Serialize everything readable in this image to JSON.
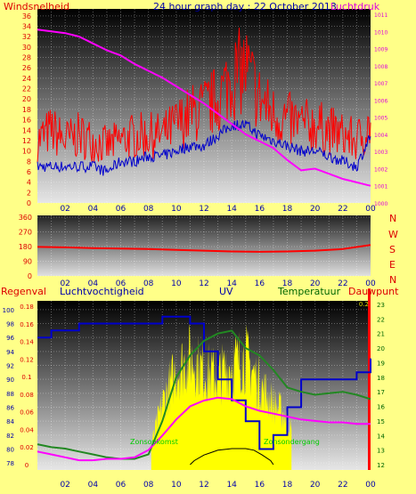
{
  "title": "24 hour graph day : 22 October 2013",
  "colors": {
    "background": "#ffff88",
    "wind": "#ff0000",
    "gust": "#0000cc",
    "pressure": "#ff00ff",
    "rain": "#ff0000",
    "humidity": "#0000cc",
    "uv": "#ffff00",
    "temperature": "#228822",
    "dewpoint": "#ff00ff",
    "solar": "#000000"
  },
  "x_ticks": [
    "02",
    "04",
    "06",
    "08",
    "10",
    "12",
    "14",
    "16",
    "18",
    "20",
    "22",
    "00"
  ],
  "top": {
    "left_label": "Windsnelheid",
    "right_label": "Luchtdruk",
    "left_ticks": [
      "36",
      "34",
      "32",
      "30",
      "28",
      "26",
      "24",
      "22",
      "20",
      "18",
      "16",
      "14",
      "12",
      "10",
      "8",
      "6",
      "4",
      "2",
      "0"
    ],
    "right_ticks": [
      "1011",
      "1010",
      "1009",
      "1008",
      "1007",
      "1006",
      "1005",
      "1004",
      "1003",
      "1002",
      "1001",
      "1000"
    ]
  },
  "middle": {
    "left_ticks": [
      "360",
      "270",
      "180",
      "90",
      "0"
    ],
    "directions": [
      "N",
      "W",
      "S",
      "E",
      "N"
    ]
  },
  "bottom": {
    "labels": [
      "Regenval",
      "Luchtvochtigheid",
      "UV",
      "Temperatuur",
      "Dauwpunt"
    ],
    "humidity_ticks": [
      "100",
      "98",
      "96",
      "94",
      "92",
      "90",
      "88",
      "86",
      "84",
      "82",
      "80",
      "78"
    ],
    "rain_ticks": [
      "0.18",
      "0.16",
      "0.14",
      "0.12",
      "0.1",
      "0.08",
      "0.06",
      "0.04",
      "0.02",
      "0"
    ],
    "temp_ticks": [
      "23",
      "22",
      "21",
      "20",
      "19",
      "18",
      "17",
      "16",
      "15",
      "14",
      "13",
      "12"
    ],
    "uv_tick_top": "0.2",
    "annotations": [
      "Zonsopkomst",
      "Zonsondergang"
    ]
  },
  "chart_data": [
    {
      "type": "line",
      "title": "24 hour graph day : 22 October 2013",
      "x": [
        0,
        1,
        2,
        3,
        4,
        5,
        6,
        7,
        8,
        9,
        10,
        11,
        12,
        13,
        14,
        15,
        16,
        17,
        18,
        19,
        20,
        21,
        22,
        23,
        24
      ],
      "series": [
        {
          "name": "Windsnelheid",
          "axis": "left",
          "values": [
            12,
            14,
            12,
            13,
            12,
            11,
            12,
            13,
            13,
            13,
            15,
            17,
            18,
            20,
            24,
            26,
            20,
            17,
            16,
            15,
            15,
            14,
            13,
            12,
            15
          ]
        },
        {
          "name": "Windsnelheid vlaag",
          "axis": "left",
          "values": [
            7,
            7,
            7,
            7,
            7,
            6,
            8,
            8,
            9,
            9,
            10,
            11,
            11,
            13,
            15,
            15,
            13,
            12,
            11,
            10,
            10,
            9,
            8,
            7,
            13
          ]
        },
        {
          "name": "Luchtdruk",
          "axis": "right",
          "values": [
            1010.1,
            1010.0,
            1009.9,
            1009.7,
            1009.3,
            1008.9,
            1008.6,
            1008.1,
            1007.7,
            1007.3,
            1006.8,
            1006.3,
            1005.8,
            1005.2,
            1004.6,
            1004.0,
            1003.6,
            1003.2,
            1002.5,
            1001.9,
            1002.0,
            1001.7,
            1001.4,
            1001.2,
            1001.0
          ]
        }
      ],
      "left_ylim": [
        0,
        37
      ],
      "right_ylim": [
        1000,
        1011
      ]
    },
    {
      "type": "line",
      "x": [
        0,
        2,
        4,
        6,
        8,
        10,
        12,
        14,
        16,
        18,
        20,
        22,
        24
      ],
      "series": [
        {
          "name": "Windrichting",
          "values": [
            178,
            175,
            170,
            168,
            165,
            160,
            155,
            150,
            148,
            150,
            155,
            165,
            190
          ]
        }
      ],
      "ylim": [
        0,
        360
      ]
    },
    {
      "type": "line",
      "x": [
        0,
        1,
        2,
        3,
        4,
        5,
        6,
        7,
        8,
        9,
        10,
        11,
        12,
        13,
        14,
        15,
        16,
        17,
        18,
        19,
        20,
        21,
        22,
        23,
        24
      ],
      "series": [
        {
          "name": "Luchtvochtigheid",
          "values": [
            96,
            97,
            97,
            98,
            98,
            98,
            98,
            98,
            98,
            99,
            99,
            98,
            94,
            90,
            87,
            84,
            80,
            82,
            86,
            90,
            90,
            90,
            90,
            91,
            93
          ]
        },
        {
          "name": "Temperatuur",
          "values": [
            13.4,
            13.2,
            13.1,
            12.9,
            12.7,
            12.5,
            12.4,
            12.4,
            12.7,
            15.0,
            18.0,
            19.5,
            20.5,
            21.0,
            21.2,
            20.0,
            19.5,
            18.5,
            17.3,
            17.0,
            16.8,
            16.9,
            17.0,
            16.8,
            16.5
          ]
        },
        {
          "name": "Dauwpunt",
          "values": [
            12.9,
            12.7,
            12.5,
            12.3,
            12.3,
            12.4,
            12.4,
            12.5,
            13.0,
            14.0,
            15.1,
            16.0,
            16.4,
            16.6,
            16.5,
            16.0,
            15.7,
            15.5,
            15.3,
            15.1,
            15.0,
            14.9,
            14.9,
            14.8,
            14.8
          ]
        },
        {
          "name": "UV",
          "values": [
            0,
            0,
            0,
            0,
            0,
            0,
            0,
            0,
            0.02,
            0.1,
            0.15,
            0.17,
            0.15,
            0.14,
            0.16,
            0.17,
            0.13,
            0.1,
            0.08,
            0,
            0,
            0,
            0,
            0,
            0
          ]
        },
        {
          "name": "Regenval",
          "values": [
            0,
            0,
            0,
            0,
            0,
            0,
            0,
            0,
            0,
            0,
            0,
            0,
            0,
            0,
            0,
            0,
            0,
            0,
            0,
            0,
            0,
            0,
            0,
            0,
            0.2
          ]
        }
      ],
      "humidity_ylim": [
        77,
        101
      ],
      "rain_ylim": [
        0,
        0.18
      ],
      "temp_ylim": [
        12,
        23
      ]
    }
  ]
}
